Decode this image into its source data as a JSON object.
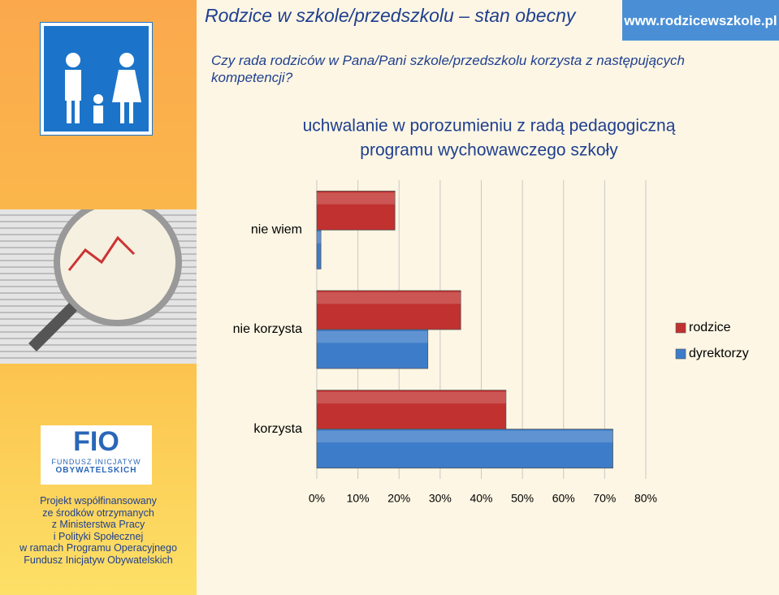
{
  "slide": {
    "title": "Rodzice w szkole/przedszkolu – stan obecny",
    "url": "www.rodzicewszkole.pl",
    "question": "Czy rada rodziców w Pana/Pani szkole/przedszkolu korzysta z następujących kompetencji?",
    "logo": {
      "short": "FIO",
      "line1": "FUNDUSZ INICJATYW",
      "line2": "OBYWATELSKICH"
    },
    "sponsor": [
      "Projekt współfinansowany",
      "ze środków otrzymanych",
      "z Ministerstwa Pracy",
      "i Polityki Społecznej",
      "w ramach Programu Operacyjnego",
      "Fundusz Inicjatyw Obywatelskich"
    ]
  },
  "chart_data": {
    "type": "hbar",
    "title": [
      "uchwalanie w porozumieniu z radą pedagogiczną",
      "programu wychowawczego szkoły"
    ],
    "categories": [
      "nie wiem",
      "nie korzysta",
      "korzysta"
    ],
    "series": [
      {
        "name": "rodzice",
        "color": "#c0312f",
        "values": [
          19,
          35,
          46
        ]
      },
      {
        "name": "dyrektorzy",
        "color": "#3d7cc9",
        "values": [
          1,
          27,
          72
        ]
      }
    ],
    "xlim": [
      0,
      80
    ],
    "xticks": [
      {
        "value": 0,
        "label": "0%"
      },
      {
        "value": 10,
        "label": "10%"
      },
      {
        "value": 20,
        "label": "20%"
      },
      {
        "value": 30,
        "label": "30%"
      },
      {
        "value": 40,
        "label": "40%"
      },
      {
        "value": 50,
        "label": "50%"
      },
      {
        "value": 60,
        "label": "60%"
      },
      {
        "value": 70,
        "label": "70%"
      },
      {
        "value": 80,
        "label": "80%"
      }
    ],
    "grid": true,
    "legend": "right"
  }
}
